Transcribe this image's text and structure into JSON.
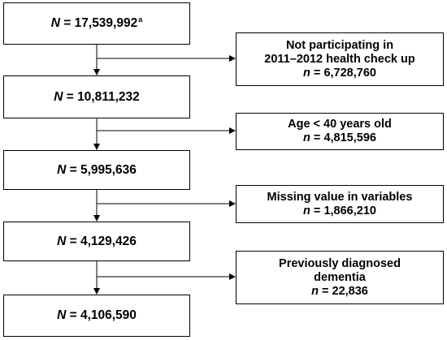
{
  "main_boxes": [
    {
      "symbol": "N",
      "value": "17,539,992",
      "footnote": "a"
    },
    {
      "symbol": "N",
      "value": "10,811,232",
      "footnote": ""
    },
    {
      "symbol": "N",
      "value": "5,995,636",
      "footnote": ""
    },
    {
      "symbol": "N",
      "value": "4,129,426",
      "footnote": ""
    },
    {
      "symbol": "N",
      "value": "4,106,590",
      "footnote": ""
    }
  ],
  "exclusion_boxes": [
    {
      "lines": [
        "Not participating in",
        "2011–2012 health check up"
      ],
      "symbol": "n",
      "value": "6,728,760"
    },
    {
      "lines": [
        "Age < 40 years old"
      ],
      "symbol": "n",
      "value": "4,815,596"
    },
    {
      "lines": [
        "Missing value in variables"
      ],
      "symbol": "n",
      "value": "1,866,210"
    },
    {
      "lines": [
        "Previously diagnosed",
        "dementia"
      ],
      "symbol": "n",
      "value": "22,836"
    }
  ]
}
